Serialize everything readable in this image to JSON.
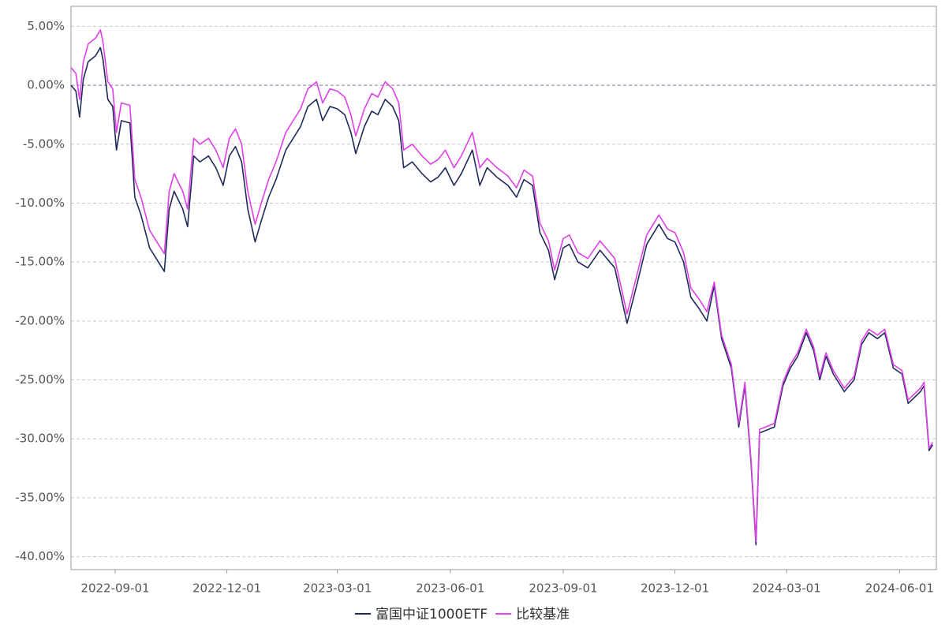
{
  "chart_data": {
    "type": "line",
    "x": [
      "2022-07-27",
      "2022-07-31",
      "2022-08-03",
      "2022-08-06",
      "2022-08-10",
      "2022-08-16",
      "2022-08-20",
      "2022-08-22",
      "2022-08-26",
      "2022-08-30",
      "2022-09-02",
      "2022-09-06",
      "2022-09-13",
      "2022-09-17",
      "2022-09-22",
      "2022-09-29",
      "2022-10-11",
      "2022-10-15",
      "2022-10-19",
      "2022-10-26",
      "2022-10-30",
      "2022-11-04",
      "2022-11-09",
      "2022-11-16",
      "2022-11-22",
      "2022-11-28",
      "2022-12-03",
      "2022-12-08",
      "2022-12-13",
      "2022-12-18",
      "2022-12-24",
      "2022-12-29",
      "2023-01-04",
      "2023-01-10",
      "2023-01-18",
      "2023-01-30",
      "2023-02-05",
      "2023-02-12",
      "2023-02-17",
      "2023-02-23",
      "2023-03-01",
      "2023-03-07",
      "2023-03-12",
      "2023-03-16",
      "2023-03-23",
      "2023-03-29",
      "2023-04-03",
      "2023-04-09",
      "2023-04-15",
      "2023-04-20",
      "2023-04-24",
      "2023-05-01",
      "2023-05-09",
      "2023-05-16",
      "2023-05-22",
      "2023-05-28",
      "2023-06-04",
      "2023-06-10",
      "2023-06-19",
      "2023-06-25",
      "2023-07-01",
      "2023-07-09",
      "2023-07-18",
      "2023-07-25",
      "2023-07-31",
      "2023-08-07",
      "2023-08-13",
      "2023-08-20",
      "2023-08-25",
      "2023-09-01",
      "2023-09-06",
      "2023-09-13",
      "2023-09-21",
      "2023-10-01",
      "2023-10-13",
      "2023-10-23",
      "2023-11-01",
      "2023-11-08",
      "2023-11-18",
      "2023-11-25",
      "2023-12-01",
      "2023-12-08",
      "2023-12-14",
      "2023-12-21",
      "2023-12-27",
      "2024-01-02",
      "2024-01-08",
      "2024-01-16",
      "2024-01-22",
      "2024-01-27",
      "2024-02-01",
      "2024-02-05",
      "2024-02-08",
      "2024-02-20",
      "2024-02-27",
      "2024-03-04",
      "2024-03-10",
      "2024-03-17",
      "2024-03-23",
      "2024-03-28",
      "2024-04-02",
      "2024-04-08",
      "2024-04-17",
      "2024-04-25",
      "2024-05-01",
      "2024-05-07",
      "2024-05-14",
      "2024-05-20",
      "2024-05-27",
      "2024-06-03",
      "2024-06-08",
      "2024-06-18",
      "2024-06-21",
      "2024-06-25",
      "2024-06-28"
    ],
    "series": [
      {
        "name": "富国中证1000ETF",
        "color": "#1f2a5a",
        "values": [
          0.0,
          -0.5,
          -2.7,
          0.5,
          2.0,
          2.5,
          3.2,
          2.2,
          -1.2,
          -1.8,
          -5.5,
          -3.0,
          -3.2,
          -9.5,
          -11.0,
          -13.8,
          -15.8,
          -10.5,
          -9.0,
          -10.5,
          -12.0,
          -6.0,
          -6.5,
          -6.0,
          -7.0,
          -8.5,
          -6.0,
          -5.2,
          -6.5,
          -10.5,
          -13.3,
          -11.5,
          -9.5,
          -8.0,
          -5.5,
          -3.5,
          -1.8,
          -1.2,
          -3.0,
          -1.8,
          -2.0,
          -2.5,
          -4.0,
          -5.8,
          -3.5,
          -2.2,
          -2.5,
          -1.2,
          -1.8,
          -3.0,
          -7.0,
          -6.5,
          -7.5,
          -8.2,
          -7.8,
          -7.0,
          -8.5,
          -7.5,
          -5.5,
          -8.5,
          -7.0,
          -7.8,
          -8.5,
          -9.5,
          -8.0,
          -8.5,
          -12.5,
          -14.0,
          -16.5,
          -13.8,
          -13.5,
          -15.0,
          -15.5,
          -14.0,
          -15.5,
          -20.2,
          -16.5,
          -13.5,
          -11.8,
          -13.0,
          -13.3,
          -15.0,
          -18.0,
          -19.0,
          -20.0,
          -17.0,
          -21.5,
          -24.0,
          -29.0,
          -25.5,
          -32.0,
          -39.0,
          -29.5,
          -29.0,
          -25.5,
          -24.0,
          -23.0,
          -21.0,
          -22.5,
          -25.0,
          -23.0,
          -24.5,
          -26.0,
          -25.0,
          -22.0,
          -21.0,
          -21.5,
          -21.0,
          -24.0,
          -24.5,
          -27.0,
          -26.0,
          -25.5,
          -31.0,
          -30.5
        ]
      },
      {
        "name": "比较基准",
        "color": "#e040e8",
        "values": [
          1.5,
          1.0,
          -1.2,
          2.0,
          3.5,
          4.0,
          4.7,
          3.7,
          0.3,
          -0.3,
          -4.0,
          -1.5,
          -1.7,
          -8.0,
          -9.5,
          -12.3,
          -14.3,
          -9.0,
          -7.5,
          -9.0,
          -10.5,
          -4.5,
          -5.0,
          -4.5,
          -5.5,
          -7.0,
          -4.5,
          -3.7,
          -5.0,
          -9.0,
          -11.8,
          -10.0,
          -8.0,
          -6.5,
          -4.0,
          -2.0,
          -0.3,
          0.3,
          -1.5,
          -0.3,
          -0.5,
          -1.0,
          -2.5,
          -4.3,
          -2.0,
          -0.7,
          -1.0,
          0.3,
          -0.3,
          -1.5,
          -5.5,
          -5.0,
          -6.0,
          -6.7,
          -6.3,
          -5.5,
          -7.0,
          -6.0,
          -4.0,
          -7.0,
          -6.2,
          -7.0,
          -7.7,
          -8.7,
          -7.2,
          -7.7,
          -11.7,
          -13.2,
          -15.7,
          -13.0,
          -12.7,
          -14.2,
          -14.7,
          -13.2,
          -14.7,
          -19.4,
          -15.7,
          -12.7,
          -11.0,
          -12.2,
          -12.5,
          -14.2,
          -17.2,
          -18.2,
          -19.2,
          -16.7,
          -21.2,
          -23.7,
          -28.7,
          -25.2,
          -31.7,
          -38.7,
          -29.2,
          -28.7,
          -25.2,
          -23.7,
          -22.7,
          -20.7,
          -22.2,
          -24.7,
          -22.7,
          -24.2,
          -25.7,
          -24.7,
          -21.7,
          -20.7,
          -21.2,
          -20.7,
          -23.7,
          -24.2,
          -26.7,
          -25.7,
          -25.2,
          -30.8,
          -30.3
        ]
      }
    ],
    "xlim": [
      "2022-07-27",
      "2024-07-01"
    ],
    "xticks": [
      "2022-09-01",
      "2022-12-01",
      "2023-03-01",
      "2023-06-01",
      "2023-09-01",
      "2023-12-01",
      "2024-03-01",
      "2024-06-01"
    ],
    "ylim": [
      -41.1,
      6.7
    ],
    "yticks": [
      {
        "value": 5,
        "label": "5.00%"
      },
      {
        "value": 0,
        "label": "0.00%"
      },
      {
        "value": -5,
        "label": "-5.00%"
      },
      {
        "value": -10,
        "label": "-10.00%"
      },
      {
        "value": -15,
        "label": "-15.00%"
      },
      {
        "value": -20,
        "label": "-20.00%"
      },
      {
        "value": -25,
        "label": "-25.00%"
      },
      {
        "value": -30,
        "label": "-30.00%"
      },
      {
        "value": -35,
        "label": "-35.00%"
      },
      {
        "value": -40,
        "label": "-40.00%"
      }
    ],
    "grid": true,
    "legend": "bottom"
  }
}
